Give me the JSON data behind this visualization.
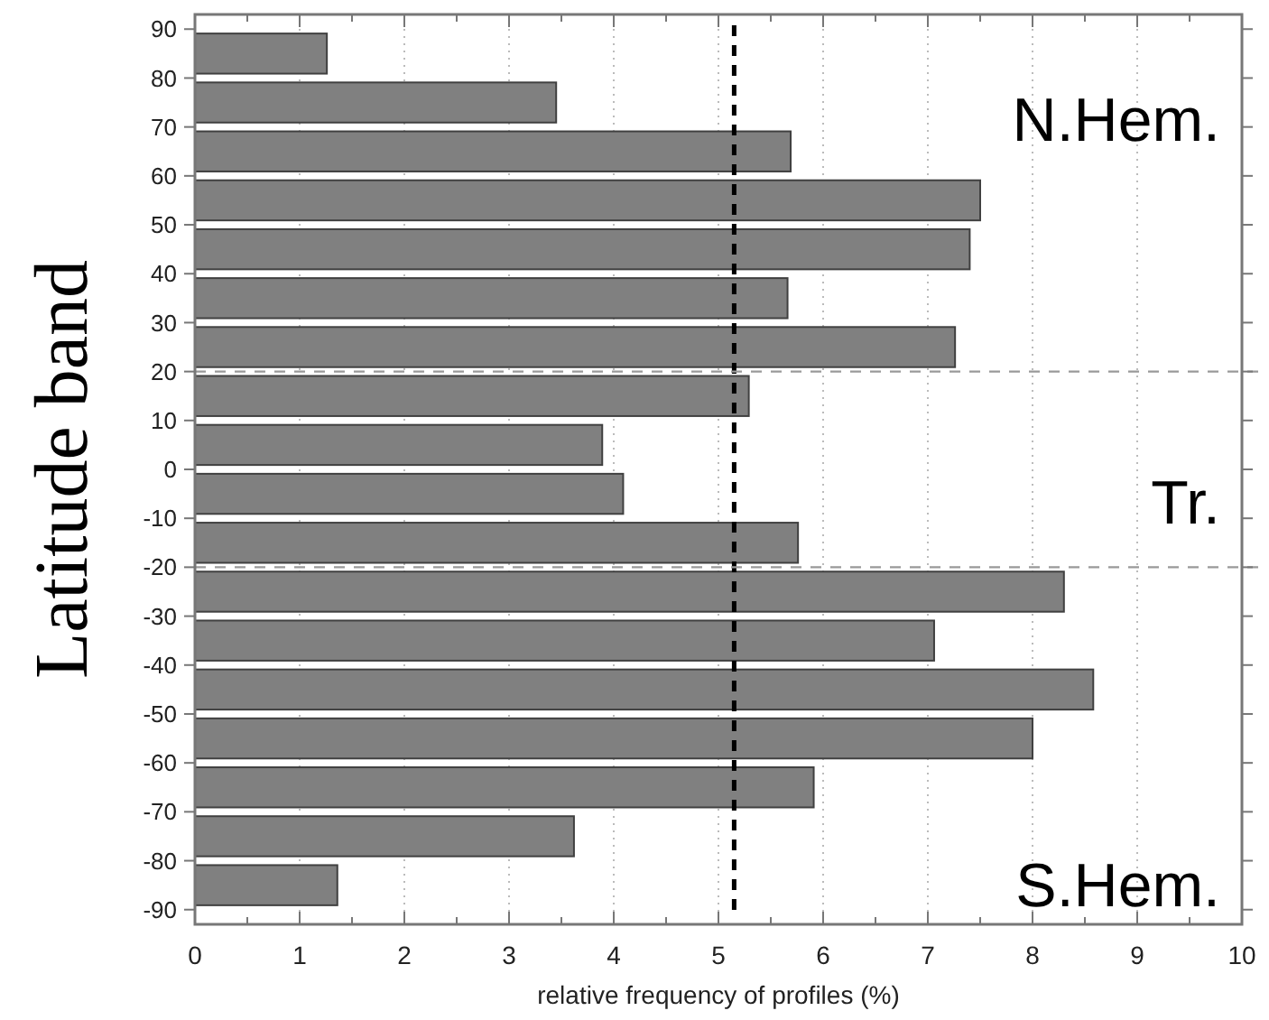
{
  "chart_data": {
    "type": "histogram",
    "orientation": "horizontal",
    "bins": [
      -90,
      -80,
      -70,
      -60,
      -50,
      -40,
      -30,
      -20,
      -10,
      0,
      10,
      20,
      30,
      40,
      50,
      60,
      70,
      80,
      90
    ],
    "values": [
      1.36,
      3.62,
      5.91,
      8.0,
      8.58,
      7.06,
      8.3,
      5.76,
      4.09,
      3.89,
      5.29,
      7.26,
      5.66,
      7.4,
      7.5,
      5.69,
      3.45,
      1.26
    ],
    "color": "#808080",
    "xlabel": "relative frequency of profiles (%)",
    "ylabel": "Latitude band",
    "xlim": [
      0,
      10
    ],
    "xticks": [
      0,
      {
        "value": 0.5,
        "label": null
      },
      1,
      {
        "value": 1.5,
        "label": null
      },
      2,
      {
        "value": 2.5,
        "label": null
      },
      3,
      {
        "value": 3.5,
        "label": null
      },
      4,
      {
        "value": 4.5,
        "label": null
      },
      5,
      {
        "value": 5.5,
        "label": null
      },
      6,
      {
        "value": 6.5,
        "label": null
      },
      7,
      {
        "value": 7.5,
        "label": null
      },
      8,
      {
        "value": 8.5,
        "label": null
      },
      9,
      {
        "value": 9.5,
        "label": null
      },
      10
    ],
    "ylim": [
      -93,
      93
    ],
    "yticks": [
      -90,
      -80,
      -70,
      -60,
      -50,
      -40,
      -30,
      -20,
      -10,
      0,
      10,
      20,
      30,
      40,
      50,
      60,
      70,
      80,
      90
    ],
    "grid": "x",
    "ref_lines": [
      {
        "axis": "x",
        "value": 5.15,
        "color": "#000000",
        "line_style": "dashed"
      },
      {
        "axis": "y",
        "value": 20,
        "color": "#999999",
        "line_style": "dashed"
      },
      {
        "axis": "y",
        "value": -20,
        "color": "#999999",
        "line_style": "dashed"
      }
    ],
    "annotations": [
      "N.Hem.",
      "Tr.",
      "S.Hem."
    ]
  }
}
